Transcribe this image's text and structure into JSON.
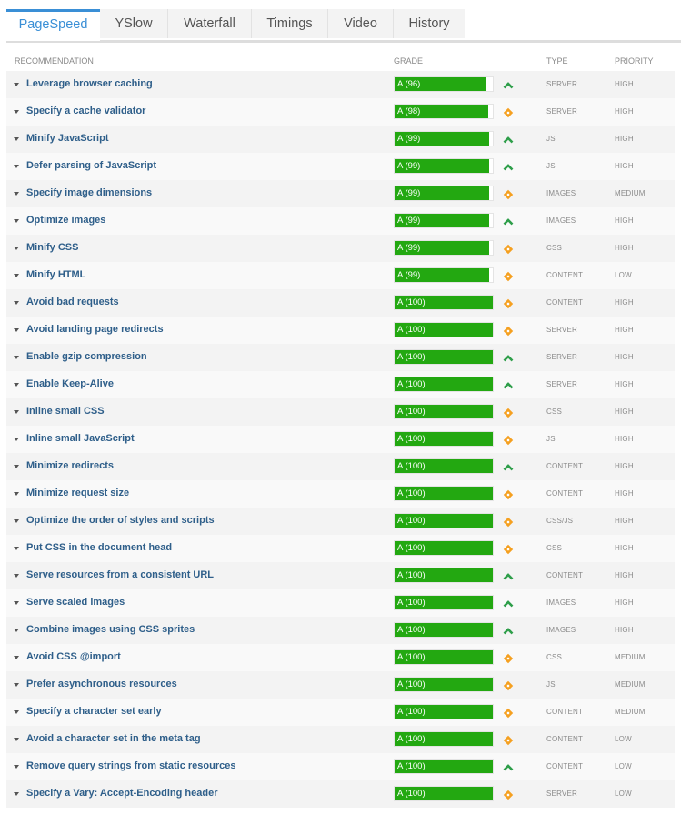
{
  "tabs": [
    {
      "label": "PageSpeed",
      "active": true
    },
    {
      "label": "YSlow",
      "active": false
    },
    {
      "label": "Waterfall",
      "active": false
    },
    {
      "label": "Timings",
      "active": false
    },
    {
      "label": "Video",
      "active": false
    },
    {
      "label": "History",
      "active": false
    }
  ],
  "table": {
    "headers": {
      "recommendation": "RECOMMENDATION",
      "grade": "GRADE",
      "type": "TYPE",
      "priority": "PRIORITY"
    },
    "colors": {
      "grade_fill": "#23a811",
      "trend_up": "#2e9e4a",
      "trend_neutral": "#f5a020",
      "link": "#2f5f8a",
      "active_tab": "#3a8fd6"
    },
    "rows": [
      {
        "name": "Leverage browser caching",
        "grade": "A (96)",
        "score": 96,
        "trend": "up",
        "type": "SERVER",
        "priority": "HIGH"
      },
      {
        "name": "Specify a cache validator",
        "grade": "A (98)",
        "score": 98,
        "trend": "neutral",
        "type": "SERVER",
        "priority": "HIGH"
      },
      {
        "name": "Minify JavaScript",
        "grade": "A (99)",
        "score": 99,
        "trend": "up",
        "type": "JS",
        "priority": "HIGH"
      },
      {
        "name": "Defer parsing of JavaScript",
        "grade": "A (99)",
        "score": 99,
        "trend": "up",
        "type": "JS",
        "priority": "HIGH"
      },
      {
        "name": "Specify image dimensions",
        "grade": "A (99)",
        "score": 99,
        "trend": "neutral",
        "type": "IMAGES",
        "priority": "MEDIUM"
      },
      {
        "name": "Optimize images",
        "grade": "A (99)",
        "score": 99,
        "trend": "up",
        "type": "IMAGES",
        "priority": "HIGH"
      },
      {
        "name": "Minify CSS",
        "grade": "A (99)",
        "score": 99,
        "trend": "neutral",
        "type": "CSS",
        "priority": "HIGH"
      },
      {
        "name": "Minify HTML",
        "grade": "A (99)",
        "score": 99,
        "trend": "neutral",
        "type": "CONTENT",
        "priority": "LOW"
      },
      {
        "name": "Avoid bad requests",
        "grade": "A (100)",
        "score": 100,
        "trend": "neutral",
        "type": "CONTENT",
        "priority": "HIGH"
      },
      {
        "name": "Avoid landing page redirects",
        "grade": "A (100)",
        "score": 100,
        "trend": "neutral",
        "type": "SERVER",
        "priority": "HIGH"
      },
      {
        "name": "Enable gzip compression",
        "grade": "A (100)",
        "score": 100,
        "trend": "up",
        "type": "SERVER",
        "priority": "HIGH"
      },
      {
        "name": "Enable Keep-Alive",
        "grade": "A (100)",
        "score": 100,
        "trend": "up",
        "type": "SERVER",
        "priority": "HIGH"
      },
      {
        "name": "Inline small CSS",
        "grade": "A (100)",
        "score": 100,
        "trend": "neutral",
        "type": "CSS",
        "priority": "HIGH"
      },
      {
        "name": "Inline small JavaScript",
        "grade": "A (100)",
        "score": 100,
        "trend": "neutral",
        "type": "JS",
        "priority": "HIGH"
      },
      {
        "name": "Minimize redirects",
        "grade": "A (100)",
        "score": 100,
        "trend": "up",
        "type": "CONTENT",
        "priority": "HIGH"
      },
      {
        "name": "Minimize request size",
        "grade": "A (100)",
        "score": 100,
        "trend": "neutral",
        "type": "CONTENT",
        "priority": "HIGH"
      },
      {
        "name": "Optimize the order of styles and scripts",
        "grade": "A (100)",
        "score": 100,
        "trend": "neutral",
        "type": "CSS/JS",
        "priority": "HIGH"
      },
      {
        "name": "Put CSS in the document head",
        "grade": "A (100)",
        "score": 100,
        "trend": "neutral",
        "type": "CSS",
        "priority": "HIGH"
      },
      {
        "name": "Serve resources from a consistent URL",
        "grade": "A (100)",
        "score": 100,
        "trend": "up",
        "type": "CONTENT",
        "priority": "HIGH"
      },
      {
        "name": "Serve scaled images",
        "grade": "A (100)",
        "score": 100,
        "trend": "up",
        "type": "IMAGES",
        "priority": "HIGH"
      },
      {
        "name": "Combine images using CSS sprites",
        "grade": "A (100)",
        "score": 100,
        "trend": "up",
        "type": "IMAGES",
        "priority": "HIGH"
      },
      {
        "name": "Avoid CSS @import",
        "grade": "A (100)",
        "score": 100,
        "trend": "neutral",
        "type": "CSS",
        "priority": "MEDIUM"
      },
      {
        "name": "Prefer asynchronous resources",
        "grade": "A (100)",
        "score": 100,
        "trend": "neutral",
        "type": "JS",
        "priority": "MEDIUM"
      },
      {
        "name": "Specify a character set early",
        "grade": "A (100)",
        "score": 100,
        "trend": "neutral",
        "type": "CONTENT",
        "priority": "MEDIUM"
      },
      {
        "name": "Avoid a character set in the meta tag",
        "grade": "A (100)",
        "score": 100,
        "trend": "neutral",
        "type": "CONTENT",
        "priority": "LOW"
      },
      {
        "name": "Remove query strings from static resources",
        "grade": "A (100)",
        "score": 100,
        "trend": "up",
        "type": "CONTENT",
        "priority": "LOW"
      },
      {
        "name": "Specify a Vary: Accept-Encoding header",
        "grade": "A (100)",
        "score": 100,
        "trend": "neutral",
        "type": "SERVER",
        "priority": "LOW"
      }
    ]
  }
}
